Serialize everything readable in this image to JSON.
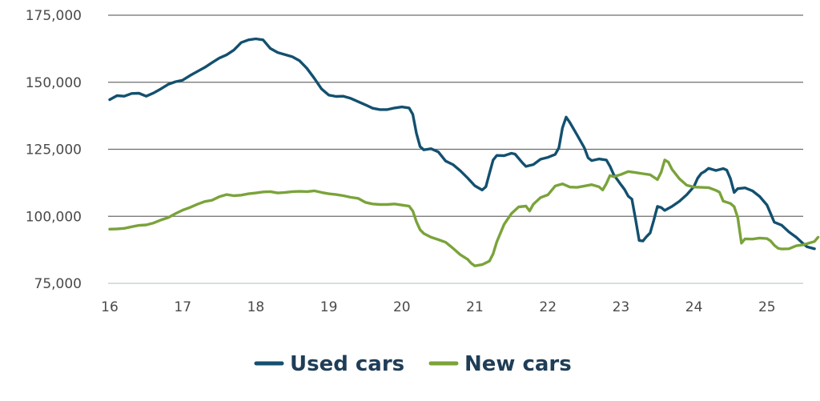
{
  "chart_data": {
    "type": "line",
    "title": "",
    "xlabel": "",
    "ylabel": "",
    "xlim": [
      16,
      25.45
    ],
    "ylim": [
      75000,
      175000
    ],
    "yticks": [
      75000,
      100000,
      125000,
      150000,
      175000
    ],
    "ytick_labels": [
      "75,000",
      "100,000",
      "125,000",
      "150,000",
      "175,000"
    ],
    "xticks": [
      16,
      17,
      18,
      19,
      20,
      21,
      22,
      23,
      24,
      25
    ],
    "xtick_labels": [
      "16",
      "17",
      "18",
      "19",
      "20",
      "21",
      "22",
      "23",
      "24",
      "25"
    ],
    "grid": "horizontal",
    "legend_position": "bottom-center",
    "series": [
      {
        "name": "Used cars",
        "color": "#13506f",
        "points": [
          [
            16.0,
            143500
          ],
          [
            16.1,
            145000
          ],
          [
            16.2,
            144800
          ],
          [
            16.3,
            145800
          ],
          [
            16.4,
            145900
          ],
          [
            16.5,
            144800
          ],
          [
            16.6,
            146000
          ],
          [
            16.7,
            147500
          ],
          [
            16.8,
            149200
          ],
          [
            16.9,
            150200
          ],
          [
            17.0,
            150800
          ],
          [
            17.1,
            152500
          ],
          [
            17.2,
            154000
          ],
          [
            17.3,
            155500
          ],
          [
            17.4,
            157300
          ],
          [
            17.5,
            159000
          ],
          [
            17.6,
            160200
          ],
          [
            17.7,
            162000
          ],
          [
            17.8,
            164800
          ],
          [
            17.9,
            165800
          ],
          [
            18.0,
            166200
          ],
          [
            18.1,
            165800
          ],
          [
            18.2,
            162600
          ],
          [
            18.3,
            161100
          ],
          [
            18.4,
            160300
          ],
          [
            18.5,
            159500
          ],
          [
            18.6,
            158000
          ],
          [
            18.7,
            155200
          ],
          [
            18.8,
            151500
          ],
          [
            18.9,
            147500
          ],
          [
            19.0,
            145200
          ],
          [
            19.1,
            144700
          ],
          [
            19.2,
            144800
          ],
          [
            19.3,
            144000
          ],
          [
            19.4,
            142800
          ],
          [
            19.5,
            141600
          ],
          [
            19.6,
            140300
          ],
          [
            19.7,
            139800
          ],
          [
            19.8,
            139800
          ],
          [
            19.9,
            140400
          ],
          [
            20.0,
            140800
          ],
          [
            20.1,
            140400
          ],
          [
            20.15,
            138000
          ],
          [
            20.2,
            131000
          ],
          [
            20.25,
            126000
          ],
          [
            20.3,
            124800
          ],
          [
            20.4,
            125200
          ],
          [
            20.5,
            124000
          ],
          [
            20.6,
            120600
          ],
          [
            20.7,
            119300
          ],
          [
            20.8,
            117000
          ],
          [
            20.9,
            114300
          ],
          [
            21.0,
            111400
          ],
          [
            21.1,
            109800
          ],
          [
            21.15,
            111000
          ],
          [
            21.2,
            116000
          ],
          [
            21.25,
            121000
          ],
          [
            21.3,
            122700
          ],
          [
            21.4,
            122600
          ],
          [
            21.5,
            123500
          ],
          [
            21.55,
            123200
          ],
          [
            21.65,
            120000
          ],
          [
            21.7,
            118600
          ],
          [
            21.8,
            119300
          ],
          [
            21.9,
            121300
          ],
          [
            22.0,
            122000
          ],
          [
            22.1,
            123100
          ],
          [
            22.15,
            125500
          ],
          [
            22.2,
            133000
          ],
          [
            22.25,
            137000
          ],
          [
            22.3,
            135000
          ],
          [
            22.4,
            130300
          ],
          [
            22.5,
            125500
          ],
          [
            22.55,
            121800
          ],
          [
            22.6,
            120800
          ],
          [
            22.7,
            121400
          ],
          [
            22.8,
            121000
          ],
          [
            22.85,
            118700
          ],
          [
            22.9,
            115600
          ],
          [
            23.0,
            111800
          ],
          [
            23.05,
            110000
          ],
          [
            23.1,
            107500
          ],
          [
            23.15,
            106400
          ],
          [
            23.2,
            99000
          ],
          [
            23.25,
            91000
          ],
          [
            23.3,
            90800
          ],
          [
            23.35,
            92400
          ],
          [
            23.4,
            93800
          ],
          [
            23.45,
            98500
          ],
          [
            23.5,
            103700
          ],
          [
            23.55,
            103300
          ],
          [
            23.6,
            102200
          ],
          [
            23.7,
            103700
          ],
          [
            23.8,
            105600
          ],
          [
            23.9,
            108000
          ],
          [
            24.0,
            111100
          ],
          [
            24.05,
            114200
          ],
          [
            24.1,
            116000
          ],
          [
            24.15,
            116800
          ],
          [
            24.2,
            117900
          ],
          [
            24.3,
            117100
          ],
          [
            24.4,
            117800
          ],
          [
            24.45,
            117200
          ],
          [
            24.5,
            114000
          ],
          [
            24.55,
            108900
          ],
          [
            24.6,
            110300
          ],
          [
            24.7,
            110600
          ],
          [
            24.8,
            109500
          ],
          [
            24.9,
            107400
          ],
          [
            25.0,
            104200
          ],
          [
            25.05,
            101000
          ],
          [
            25.1,
            97800
          ],
          [
            25.2,
            96700
          ],
          [
            25.3,
            94200
          ],
          [
            25.4,
            92200
          ],
          [
            25.5,
            89700
          ],
          [
            25.55,
            88600
          ],
          [
            25.65,
            87900
          ]
        ]
      },
      {
        "name": "New cars",
        "color": "#7aa33a",
        "points": [
          [
            16.0,
            95200
          ],
          [
            16.1,
            95300
          ],
          [
            16.2,
            95500
          ],
          [
            16.3,
            96100
          ],
          [
            16.4,
            96600
          ],
          [
            16.5,
            96800
          ],
          [
            16.6,
            97500
          ],
          [
            16.7,
            98600
          ],
          [
            16.8,
            99500
          ],
          [
            16.9,
            101000
          ],
          [
            17.0,
            102300
          ],
          [
            17.1,
            103300
          ],
          [
            17.2,
            104500
          ],
          [
            17.3,
            105500
          ],
          [
            17.4,
            106000
          ],
          [
            17.5,
            107300
          ],
          [
            17.6,
            108100
          ],
          [
            17.7,
            107700
          ],
          [
            17.8,
            107900
          ],
          [
            17.9,
            108400
          ],
          [
            18.0,
            108700
          ],
          [
            18.1,
            109100
          ],
          [
            18.2,
            109200
          ],
          [
            18.3,
            108700
          ],
          [
            18.4,
            108900
          ],
          [
            18.5,
            109200
          ],
          [
            18.6,
            109300
          ],
          [
            18.7,
            109200
          ],
          [
            18.8,
            109500
          ],
          [
            18.9,
            108900
          ],
          [
            19.0,
            108400
          ],
          [
            19.1,
            108100
          ],
          [
            19.2,
            107700
          ],
          [
            19.3,
            107100
          ],
          [
            19.4,
            106700
          ],
          [
            19.5,
            105200
          ],
          [
            19.6,
            104600
          ],
          [
            19.7,
            104400
          ],
          [
            19.8,
            104400
          ],
          [
            19.9,
            104600
          ],
          [
            20.0,
            104200
          ],
          [
            20.1,
            103800
          ],
          [
            20.15,
            102000
          ],
          [
            20.2,
            98000
          ],
          [
            20.25,
            95000
          ],
          [
            20.3,
            93600
          ],
          [
            20.4,
            92200
          ],
          [
            20.5,
            91300
          ],
          [
            20.6,
            90300
          ],
          [
            20.7,
            88100
          ],
          [
            20.8,
            85700
          ],
          [
            20.9,
            84000
          ],
          [
            20.95,
            82500
          ],
          [
            21.0,
            81500
          ],
          [
            21.1,
            82000
          ],
          [
            21.2,
            83300
          ],
          [
            21.25,
            86000
          ],
          [
            21.3,
            90500
          ],
          [
            21.4,
            97000
          ],
          [
            21.5,
            101000
          ],
          [
            21.6,
            103500
          ],
          [
            21.7,
            103800
          ],
          [
            21.75,
            102000
          ],
          [
            21.8,
            104500
          ],
          [
            21.9,
            107000
          ],
          [
            22.0,
            108000
          ],
          [
            22.1,
            111300
          ],
          [
            22.2,
            112100
          ],
          [
            22.3,
            110900
          ],
          [
            22.4,
            110800
          ],
          [
            22.5,
            111300
          ],
          [
            22.6,
            111800
          ],
          [
            22.7,
            111000
          ],
          [
            22.75,
            109800
          ],
          [
            22.8,
            112200
          ],
          [
            22.85,
            115200
          ],
          [
            22.9,
            114800
          ],
          [
            23.0,
            115600
          ],
          [
            23.1,
            116700
          ],
          [
            23.2,
            116300
          ],
          [
            23.3,
            115900
          ],
          [
            23.4,
            115500
          ],
          [
            23.5,
            113700
          ],
          [
            23.55,
            116400
          ],
          [
            23.6,
            121000
          ],
          [
            23.65,
            120200
          ],
          [
            23.7,
            117500
          ],
          [
            23.8,
            114000
          ],
          [
            23.9,
            111600
          ],
          [
            24.0,
            110900
          ],
          [
            24.1,
            110800
          ],
          [
            24.2,
            110700
          ],
          [
            24.3,
            109700
          ],
          [
            24.35,
            109000
          ],
          [
            24.4,
            105700
          ],
          [
            24.5,
            104800
          ],
          [
            24.55,
            103600
          ],
          [
            24.6,
            99500
          ],
          [
            24.65,
            90000
          ],
          [
            24.7,
            91600
          ],
          [
            24.8,
            91500
          ],
          [
            24.9,
            91900
          ],
          [
            25.0,
            91700
          ],
          [
            25.05,
            90800
          ],
          [
            25.1,
            89200
          ],
          [
            25.15,
            88100
          ],
          [
            25.2,
            87800
          ],
          [
            25.3,
            87900
          ],
          [
            25.4,
            89000
          ],
          [
            25.5,
            89400
          ],
          [
            25.55,
            89800
          ],
          [
            25.65,
            90600
          ],
          [
            25.7,
            92200
          ]
        ]
      }
    ]
  }
}
